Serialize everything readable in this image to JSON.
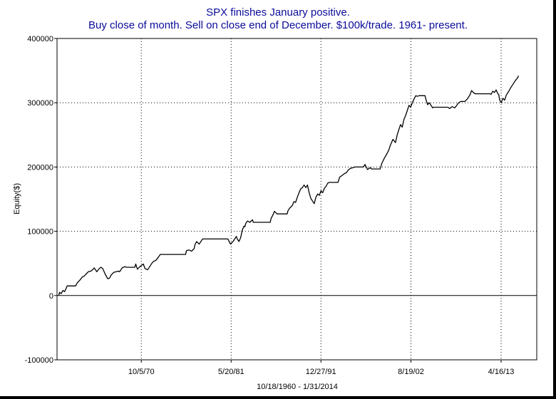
{
  "chart_data": {
    "type": "line",
    "title": "SPX finishes January positive.",
    "subtitle": "Buy close of month. Sell on close end of December. $100k/trade. 1961- present.",
    "xlabel": "10/18/1960 - 1/31/2014",
    "ylabel": "Equity($)",
    "ylim": [
      -100000,
      400000
    ],
    "xlim": [
      1960.8,
      2017.5
    ],
    "yticks": [
      {
        "value": 400000,
        "label": "400000"
      },
      {
        "value": 300000,
        "label": "300000"
      },
      {
        "value": 200000,
        "label": "200000"
      },
      {
        "value": 100000,
        "label": "100000"
      },
      {
        "value": 0,
        "label": "0"
      },
      {
        "value": -100000,
        "label": "-100000"
      }
    ],
    "xticks": [
      {
        "value": 1970.76,
        "label": "10/5/70"
      },
      {
        "value": 1981.38,
        "label": "5/20/81"
      },
      {
        "value": 1991.99,
        "label": "12/27/91"
      },
      {
        "value": 2002.63,
        "label": "8/19/02"
      },
      {
        "value": 2013.29,
        "label": "4/16/13"
      }
    ],
    "grid": true,
    "series": [
      {
        "points": [
          [
            1961.0,
            0
          ],
          [
            1961.1,
            5000
          ],
          [
            1961.3,
            3000
          ],
          [
            1961.5,
            8000
          ],
          [
            1961.7,
            6000
          ],
          [
            1961.9,
            12000
          ],
          [
            1962.0,
            15000
          ],
          [
            1963.0,
            15000
          ],
          [
            1963.2,
            20000
          ],
          [
            1963.5,
            24000
          ],
          [
            1963.8,
            29000
          ],
          [
            1964.0,
            30000
          ],
          [
            1964.2,
            33000
          ],
          [
            1964.5,
            37000
          ],
          [
            1964.8,
            38000
          ],
          [
            1965.0,
            40000
          ],
          [
            1965.2,
            43000
          ],
          [
            1965.5,
            37000
          ],
          [
            1965.8,
            42000
          ],
          [
            1966.0,
            44000
          ],
          [
            1966.2,
            42000
          ],
          [
            1966.5,
            33000
          ],
          [
            1966.8,
            26000
          ],
          [
            1967.0,
            27000
          ],
          [
            1967.2,
            32000
          ],
          [
            1967.5,
            36000
          ],
          [
            1967.8,
            37000
          ],
          [
            1968.0,
            38000
          ],
          [
            1968.2,
            37000
          ],
          [
            1968.5,
            43000
          ],
          [
            1968.8,
            45000
          ],
          [
            1969.0,
            44000
          ],
          [
            1970.0,
            44000
          ],
          [
            1970.1,
            49000
          ],
          [
            1970.3,
            41000
          ],
          [
            1970.6,
            45000
          ],
          [
            1970.9,
            48000
          ],
          [
            1971.0,
            49000
          ],
          [
            1971.2,
            42000
          ],
          [
            1971.5,
            40000
          ],
          [
            1971.8,
            46000
          ],
          [
            1972.0,
            50000
          ],
          [
            1972.2,
            53000
          ],
          [
            1972.5,
            55000
          ],
          [
            1972.8,
            60000
          ],
          [
            1973.0,
            64000
          ],
          [
            1976.0,
            64000
          ],
          [
            1976.1,
            70000
          ],
          [
            1976.4,
            71000
          ],
          [
            1976.7,
            69000
          ],
          [
            1977.0,
            73000
          ],
          [
            1977.1,
            79000
          ],
          [
            1977.3,
            84000
          ],
          [
            1977.6,
            80000
          ],
          [
            1977.9,
            86000
          ],
          [
            1978.0,
            88000
          ],
          [
            1981.0,
            88000
          ],
          [
            1981.1,
            85000
          ],
          [
            1981.3,
            80000
          ],
          [
            1981.6,
            84000
          ],
          [
            1981.9,
            90000
          ],
          [
            1982.0,
            92000
          ],
          [
            1982.1,
            88000
          ],
          [
            1982.3,
            84000
          ],
          [
            1982.5,
            90000
          ],
          [
            1982.7,
            102000
          ],
          [
            1982.9,
            108000
          ],
          [
            1983.0,
            107000
          ],
          [
            1983.1,
            112000
          ],
          [
            1983.3,
            116000
          ],
          [
            1983.6,
            114000
          ],
          [
            1983.9,
            118000
          ],
          [
            1984.0,
            114000
          ],
          [
            1986.0,
            114000
          ],
          [
            1986.1,
            120000
          ],
          [
            1986.3,
            125000
          ],
          [
            1986.5,
            131000
          ],
          [
            1986.8,
            127000
          ],
          [
            1987.0,
            127000
          ],
          [
            1988.0,
            127000
          ],
          [
            1988.1,
            132000
          ],
          [
            1988.3,
            136000
          ],
          [
            1988.6,
            140000
          ],
          [
            1988.8,
            146000
          ],
          [
            1989.0,
            145000
          ],
          [
            1989.2,
            153000
          ],
          [
            1989.4,
            160000
          ],
          [
            1989.6,
            166000
          ],
          [
            1989.8,
            168000
          ],
          [
            1990.0,
            172000
          ],
          [
            1990.2,
            168000
          ],
          [
            1990.4,
            172000
          ],
          [
            1990.6,
            160000
          ],
          [
            1990.8,
            151000
          ],
          [
            1991.0,
            147000
          ],
          [
            1991.2,
            143000
          ],
          [
            1991.4,
            153000
          ],
          [
            1991.6,
            158000
          ],
          [
            1991.8,
            156000
          ],
          [
            1992.0,
            163000
          ],
          [
            1992.2,
            160000
          ],
          [
            1992.4,
            167000
          ],
          [
            1992.6,
            170000
          ],
          [
            1992.8,
            175000
          ],
          [
            1993.0,
            176000
          ],
          [
            1994.0,
            176000
          ],
          [
            1994.2,
            184000
          ],
          [
            1994.5,
            187000
          ],
          [
            1994.8,
            190000
          ],
          [
            1995.0,
            191000
          ],
          [
            1995.2,
            195000
          ],
          [
            1995.5,
            198000
          ],
          [
            1995.8,
            199000
          ],
          [
            1996.0,
            200000
          ],
          [
            1997.0,
            200000
          ],
          [
            1997.2,
            204000
          ],
          [
            1997.5,
            196000
          ],
          [
            1997.8,
            199000
          ],
          [
            1998.0,
            197000
          ],
          [
            1999.0,
            197000
          ],
          [
            1999.2,
            206000
          ],
          [
            1999.5,
            214000
          ],
          [
            1999.8,
            221000
          ],
          [
            2000.0,
            226000
          ],
          [
            2000.2,
            234000
          ],
          [
            2000.5,
            243000
          ],
          [
            2000.8,
            238000
          ],
          [
            2001.0,
            250000
          ],
          [
            2001.2,
            258000
          ],
          [
            2001.4,
            266000
          ],
          [
            2001.6,
            262000
          ],
          [
            2001.8,
            274000
          ],
          [
            2002.0,
            280000
          ],
          [
            2002.2,
            288000
          ],
          [
            2002.4,
            296000
          ],
          [
            2002.6,
            293000
          ],
          [
            2002.8,
            300000
          ],
          [
            2003.0,
            306000
          ],
          [
            2003.2,
            311000
          ],
          [
            2003.4,
            310000
          ],
          [
            2003.6,
            311000
          ],
          [
            2004.0,
            311000
          ],
          [
            2004.3,
            311000
          ],
          [
            2004.4,
            305000
          ],
          [
            2004.6,
            297000
          ],
          [
            2004.8,
            300000
          ],
          [
            2005.0,
            296000
          ],
          [
            2005.2,
            292000
          ],
          [
            2005.3,
            293000
          ],
          [
            2007.0,
            293000
          ],
          [
            2007.2,
            291000
          ],
          [
            2007.5,
            294000
          ],
          [
            2007.8,
            292000
          ],
          [
            2008.0,
            295000
          ],
          [
            2008.2,
            299000
          ],
          [
            2008.5,
            302000
          ],
          [
            2009.0,
            302000
          ],
          [
            2009.3,
            306000
          ],
          [
            2009.6,
            312000
          ],
          [
            2009.8,
            319000
          ],
          [
            2010.0,
            316000
          ],
          [
            2010.2,
            314000
          ],
          [
            2012.0,
            314000
          ],
          [
            2012.1,
            313000
          ],
          [
            2012.3,
            318000
          ],
          [
            2012.5,
            316000
          ],
          [
            2012.7,
            320000
          ],
          [
            2012.9,
            314000
          ],
          [
            2013.0,
            313000
          ],
          [
            2013.1,
            305000
          ],
          [
            2013.3,
            300000
          ],
          [
            2013.5,
            307000
          ],
          [
            2013.7,
            304000
          ],
          [
            2013.9,
            312000
          ],
          [
            2014.0,
            314000
          ],
          [
            2014.2,
            318000
          ],
          [
            2014.4,
            323000
          ],
          [
            2014.6,
            327000
          ],
          [
            2014.8,
            331000
          ],
          [
            2015.0,
            335000
          ],
          [
            2015.2,
            338000
          ],
          [
            2015.35,
            342000
          ]
        ]
      }
    ]
  }
}
